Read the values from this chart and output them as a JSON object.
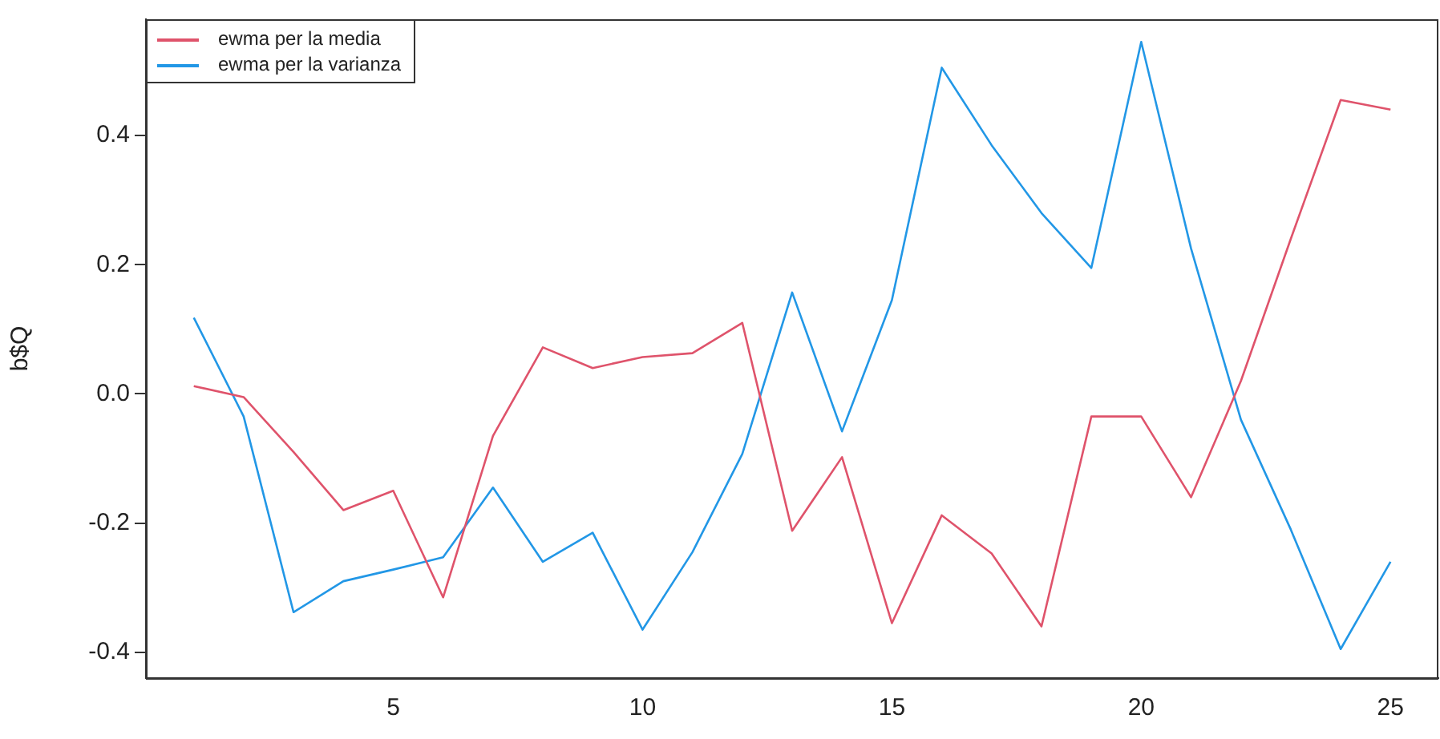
{
  "chart_data": {
    "type": "line",
    "ylabel": "b$Q",
    "x": [
      1,
      2,
      3,
      4,
      5,
      6,
      7,
      8,
      9,
      10,
      11,
      12,
      13,
      14,
      15,
      16,
      17,
      18,
      19,
      20,
      21,
      22,
      23,
      24,
      25
    ],
    "series": [
      {
        "name": "ewma per la media",
        "color": "#df536b",
        "values": [
          0.012,
          -0.005,
          -0.09,
          -0.18,
          -0.15,
          -0.315,
          -0.065,
          0.072,
          0.04,
          0.057,
          0.063,
          0.11,
          -0.212,
          -0.098,
          -0.355,
          -0.188,
          -0.247,
          -0.36,
          -0.035,
          -0.035,
          -0.16,
          0.02,
          0.24,
          0.455,
          0.44
        ]
      },
      {
        "name": "ewma per la varianza",
        "color": "#2297e6",
        "values": [
          0.118,
          -0.035,
          -0.338,
          -0.29,
          -0.272,
          -0.253,
          -0.145,
          -0.26,
          -0.215,
          -0.365,
          -0.245,
          -0.093,
          0.157,
          -0.058,
          0.145,
          0.505,
          0.385,
          0.28,
          0.195,
          0.545,
          0.225,
          -0.04,
          -0.21,
          -0.395,
          -0.26
        ]
      }
    ],
    "xlim": [
      0.04,
      25.96
    ],
    "xticks": [
      5,
      10,
      15,
      20,
      25
    ],
    "ylim": [
      -0.44,
      0.58
    ],
    "yticks": [
      -0.4,
      -0.2,
      {
        "value": 0,
        "label": "0.0"
      },
      0.2,
      0.4
    ],
    "grid": false,
    "legend": "top left",
    "marker": "none",
    "line_style": "solid"
  }
}
